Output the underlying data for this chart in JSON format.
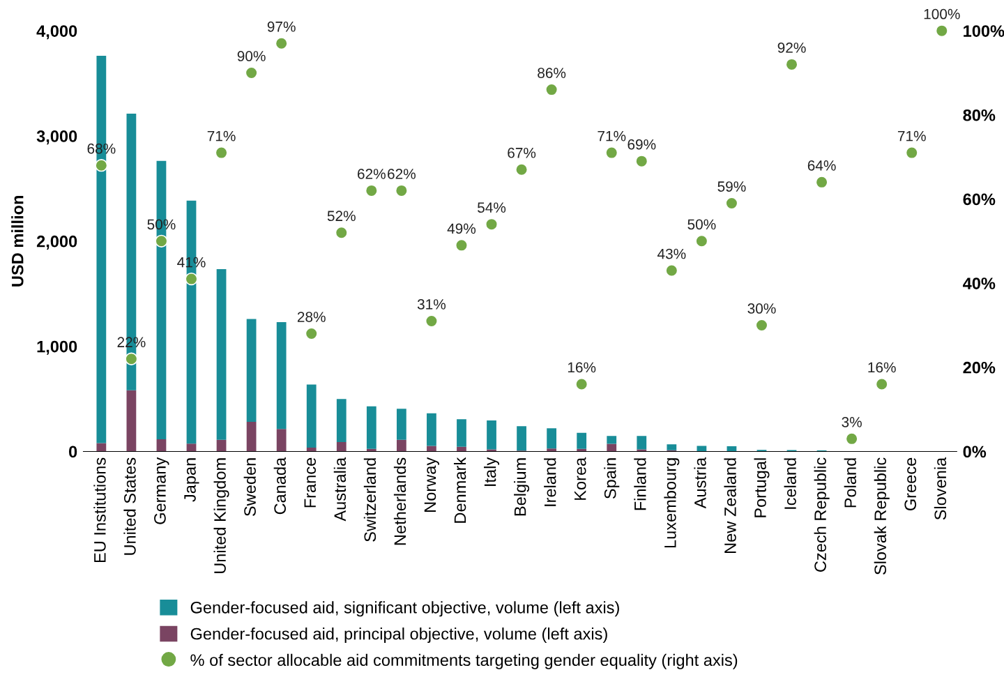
{
  "chart_data": {
    "type": "bar",
    "stacked": true,
    "ylabel": "USD million",
    "categories": [
      "EU Institutions",
      "United States",
      "Germany",
      "Japan",
      "United Kingdom",
      "Sweden",
      "Canada",
      "France",
      "Australia",
      "Switzerland",
      "Netherlands",
      "Norway",
      "Denmark",
      "Italy",
      "Belgium",
      "Ireland",
      "Korea",
      "Spain",
      "Finland",
      "Luxembourg",
      "Austria",
      "New Zealand",
      "Portugal",
      "Iceland",
      "Czech Republic",
      "Poland",
      "Slovak Republic",
      "Greece",
      "Slovenia"
    ],
    "series": [
      {
        "name": "Gender-focused aid, principal objective, volume (left axis)",
        "color": "#7a4462",
        "values": [
          80,
          581,
          115,
          75,
          110,
          282,
          213,
          36,
          89,
          25,
          111,
          52,
          45,
          19,
          8,
          28,
          25,
          72,
          19,
          11,
          0,
          0,
          0,
          0,
          0,
          0,
          0,
          0,
          0
        ]
      },
      {
        "name": "Gender-focused aid, significant objective, volume (left axis)",
        "color": "#188d98",
        "values": [
          3682,
          2631,
          2647,
          2310,
          1624,
          978,
          1017,
          601,
          409,
          404,
          294,
          311,
          261,
          276,
          232,
          192,
          152,
          75,
          128,
          57,
          53,
          50,
          15,
          13,
          10,
          0,
          0,
          0,
          0
        ]
      },
      {
        "name": "% of sector allocable aid commitments targeting gender equality (right axis)",
        "type": "scatter",
        "axis": "y2",
        "color": "#72a845",
        "marker": "circle",
        "values": [
          68,
          22,
          50,
          41,
          71,
          90,
          97,
          28,
          52,
          62,
          62,
          31,
          49,
          54,
          67,
          86,
          16,
          71,
          69,
          43,
          50,
          59,
          30,
          92,
          64,
          3,
          16,
          71,
          100
        ],
        "value_labels": [
          "68%",
          "22%",
          "50%",
          "41%",
          "71%",
          "90%",
          "97%",
          "28%",
          "52%",
          "62%",
          "62%",
          "31%",
          "49%",
          "54%",
          "67%",
          "86%",
          "16%",
          "71%",
          "69%",
          "43%",
          "50%",
          "59%",
          "30%",
          "92%",
          "64%",
          "3%",
          "16%",
          "71%",
          "100%"
        ]
      }
    ],
    "ylim": [
      0,
      4000
    ],
    "yticks": [
      0,
      {
        "value": 1000,
        "label": "1,000"
      },
      {
        "value": 2000,
        "label": "2,000"
      },
      {
        "value": 3000,
        "label": "3,000"
      },
      {
        "value": 4000,
        "label": "4,000"
      }
    ],
    "y2lim": [
      0,
      100
    ],
    "y2ticks": [
      {
        "value": 0,
        "label": "0%"
      },
      {
        "value": 20,
        "label": "20%"
      },
      {
        "value": 40,
        "label": "40%"
      },
      {
        "value": 60,
        "label": "60%"
      },
      {
        "value": 80,
        "label": "80%"
      },
      {
        "value": 100,
        "label": "100%"
      }
    ],
    "grid": false,
    "legend": "bottom"
  }
}
